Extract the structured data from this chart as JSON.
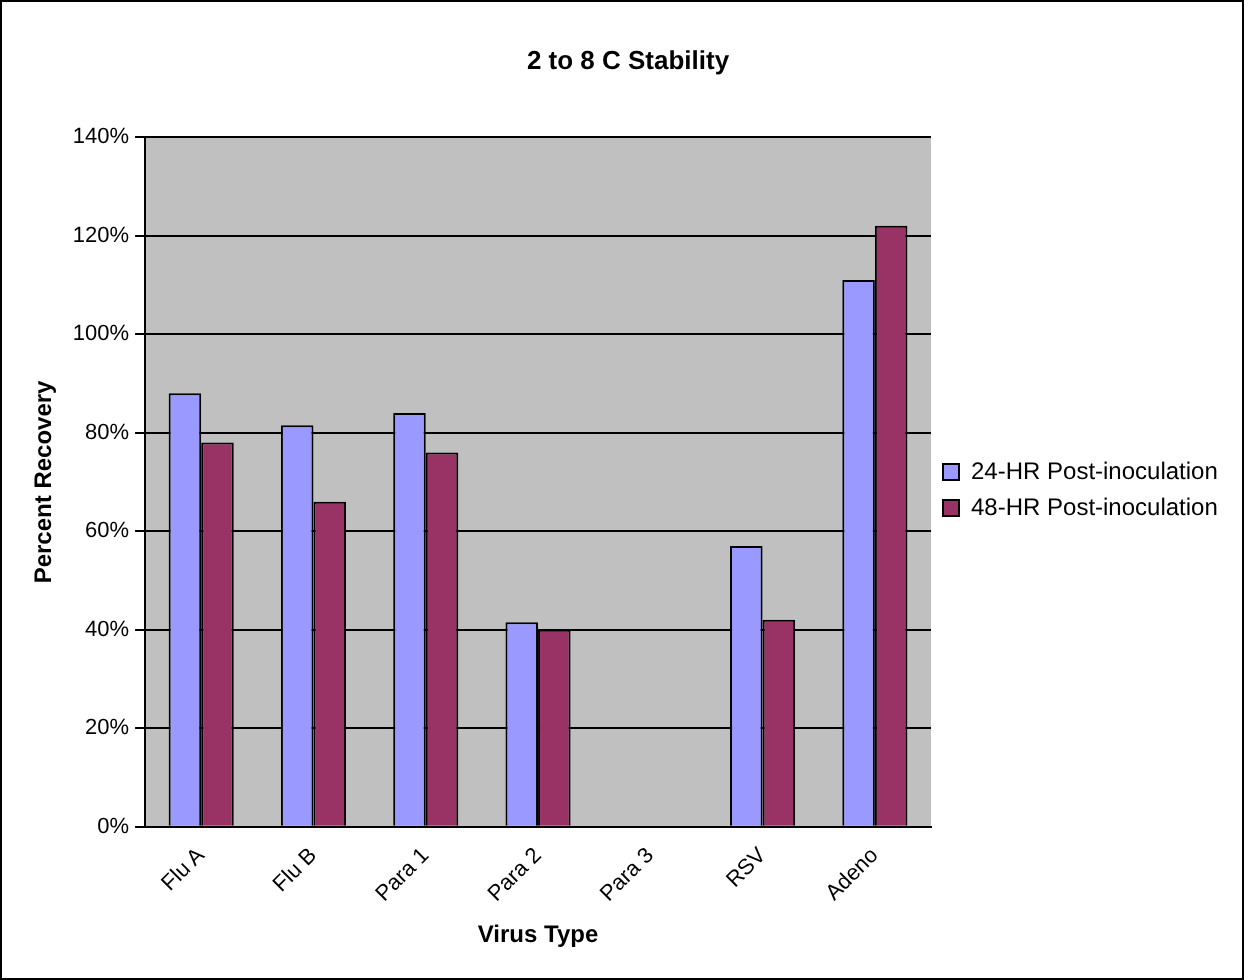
{
  "chart_data": {
    "type": "bar",
    "title": "2 to 8 C Stability",
    "xlabel": "Virus Type",
    "ylabel": "Percent Recovery",
    "categories": [
      "Flu A",
      "Flu B",
      "Para 1",
      "Para 2",
      "Para 3",
      "RSV",
      "Adeno"
    ],
    "series": [
      {
        "name": "24-HR Post-inoculation",
        "color": "#9999ff",
        "values": [
          88,
          81.5,
          84,
          41.5,
          null,
          57,
          111
        ]
      },
      {
        "name": "48-HR Post-inoculation",
        "color": "#993366",
        "values": [
          78,
          66,
          76,
          40,
          null,
          42,
          122
        ]
      }
    ],
    "ylim": [
      0,
      140
    ],
    "yticks": [
      {
        "value": 0,
        "label": "0%"
      },
      {
        "value": 20,
        "label": "20%"
      },
      {
        "value": 40,
        "label": "40%"
      },
      {
        "value": 60,
        "label": "60%"
      },
      {
        "value": 80,
        "label": "80%"
      },
      {
        "value": 100,
        "label": "100%"
      },
      {
        "value": 120,
        "label": "120%"
      },
      {
        "value": 140,
        "label": "140%"
      }
    ],
    "grid": "y",
    "legend": "right"
  }
}
